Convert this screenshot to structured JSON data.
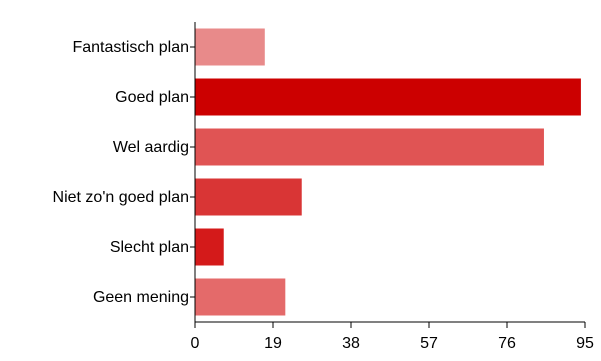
{
  "chart_data": {
    "type": "bar",
    "orientation": "horizontal",
    "categories": [
      "Fantastisch plan",
      "Goed plan",
      "Wel aardig",
      "Niet zo'n goed plan",
      "Slecht plan",
      "Geen mening"
    ],
    "values": [
      17,
      94,
      85,
      26,
      7,
      22
    ],
    "colors": [
      "#e88a8a",
      "#cc0000",
      "#e05454",
      "#d93535",
      "#d41a1a",
      "#e46a6a"
    ],
    "xticks": [
      0,
      19,
      38,
      57,
      76,
      95
    ],
    "xlim": [
      0,
      95
    ],
    "grid": false,
    "legend": "none",
    "title": "",
    "xlabel": "",
    "ylabel": ""
  }
}
